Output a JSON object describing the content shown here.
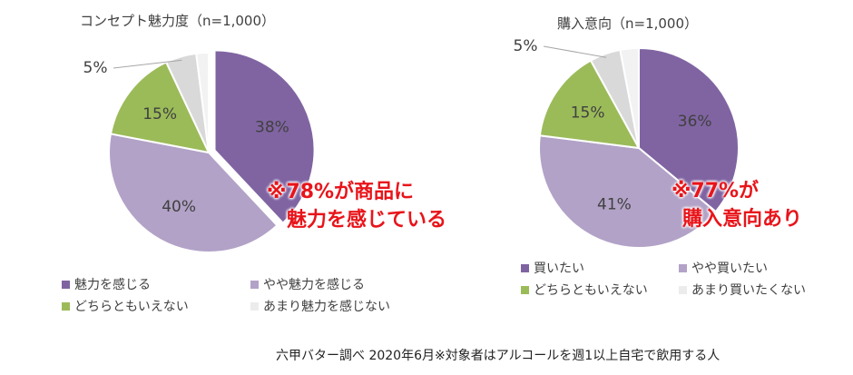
{
  "chart_data": [
    {
      "type": "pie",
      "title": "コンセプト魅力度（n=1,000）",
      "categories": [
        "魅力を感じる",
        "やや魅力を感じる",
        "どちらともいえない",
        "あまり魅力を感じない",
        ""
      ],
      "values": [
        38,
        40,
        15,
        5,
        2
      ],
      "labels": [
        "38%",
        "40%",
        "15%",
        "5%",
        ""
      ],
      "colors": [
        "#8064a2",
        "#b2a2c7",
        "#9bbb59",
        "#d9d9d9",
        "#f2f2f2"
      ],
      "exploded_slice": 0,
      "legend_position": "bottom",
      "callout": [
        "※78%が商品に",
        "魅力を感じている"
      ]
    },
    {
      "type": "pie",
      "title": "購入意向（n=1,000）",
      "categories": [
        "買いたい",
        "やや買いたい",
        "どちらともいえない",
        "あまり買いたくない",
        ""
      ],
      "values": [
        36,
        41,
        15,
        5,
        3
      ],
      "labels": [
        "36%",
        "41%",
        "15%",
        "5%",
        ""
      ],
      "colors": [
        "#8064a2",
        "#b2a2c7",
        "#9bbb59",
        "#d9d9d9",
        "#f2f2f2"
      ],
      "exploded_slice": null,
      "legend_position": "bottom",
      "callout": [
        "※77%が",
        "購入意向あり"
      ]
    }
  ],
  "footer": "六甲バター調べ 2020年6月※対象者はアルコールを週1以上自宅で飲用する人"
}
